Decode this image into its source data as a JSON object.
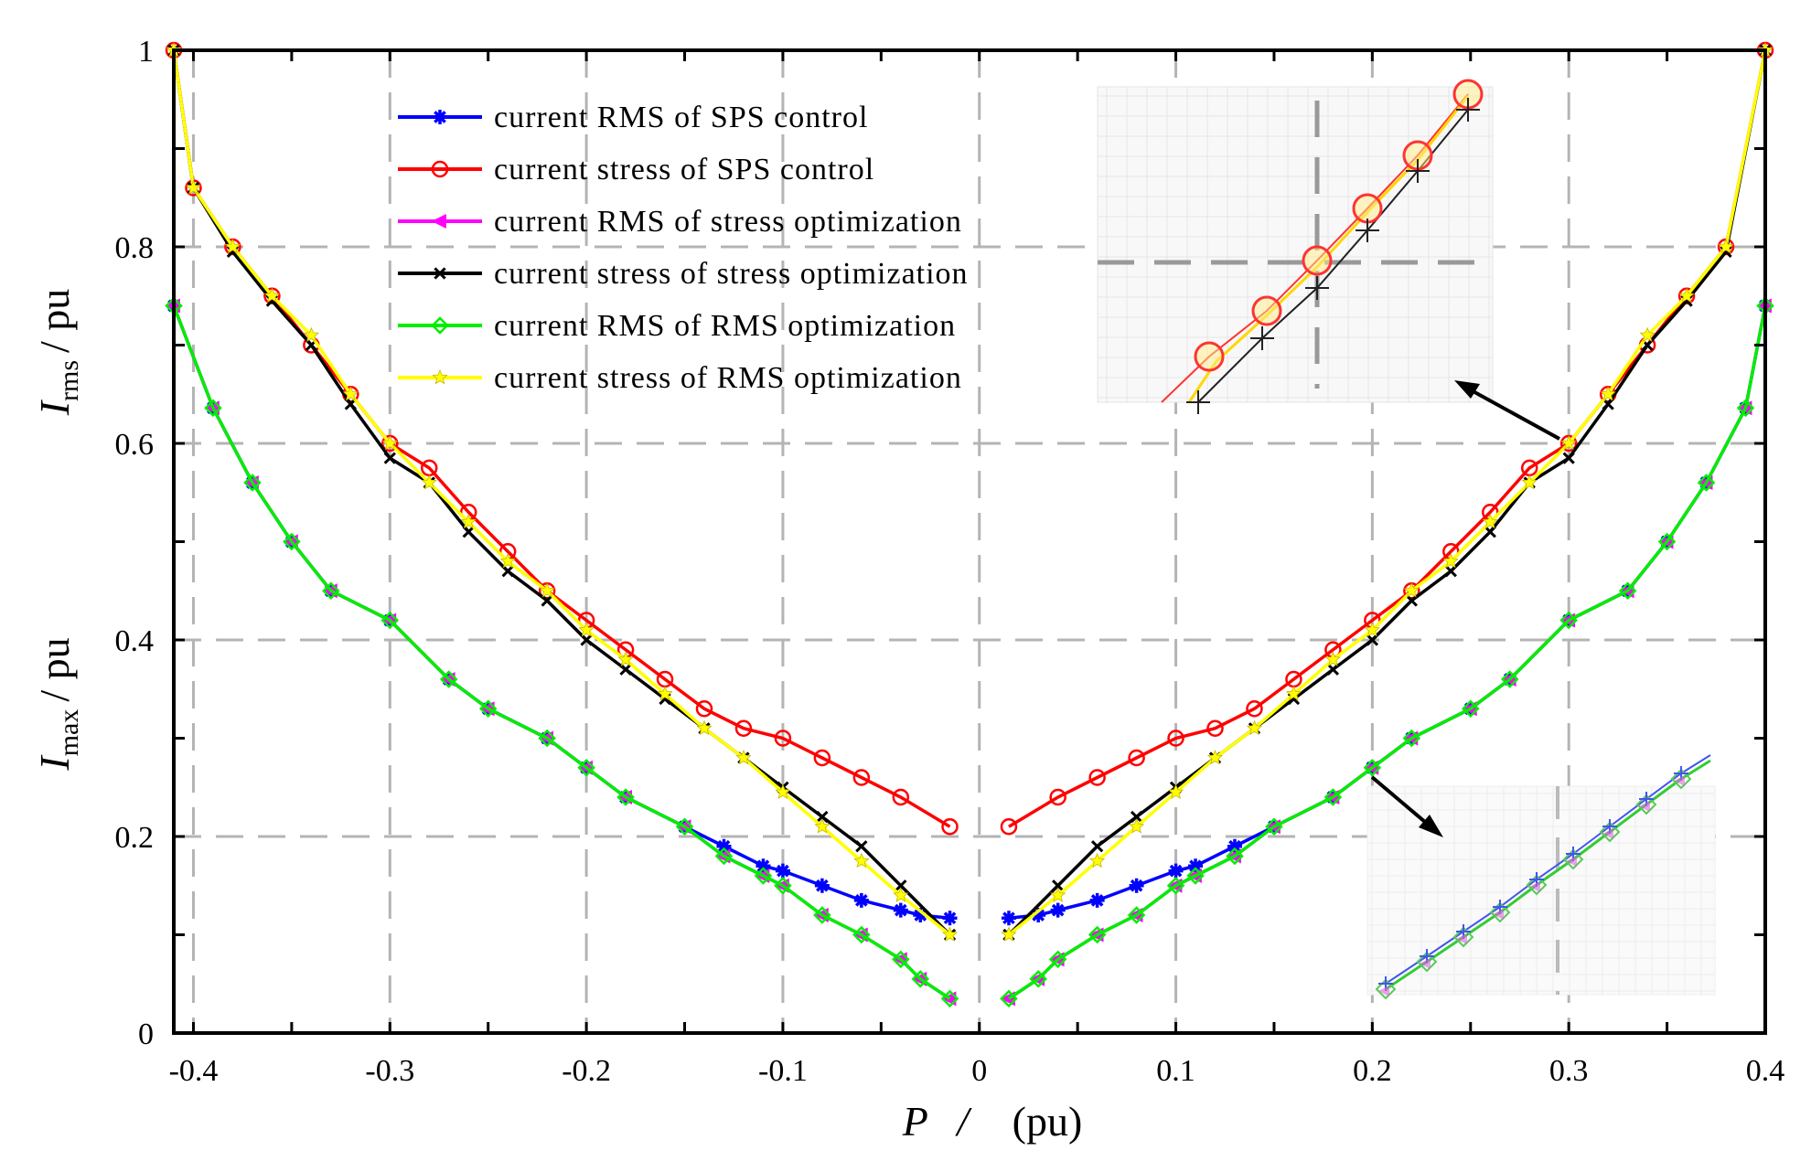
{
  "chart_data": {
    "type": "line",
    "title": "",
    "xlabel": {
      "var": "P",
      "sep": "/",
      "unit": "(pu)"
    },
    "ylabel_upper": {
      "var": "I",
      "sub": "rms",
      "unit": "/ pu"
    },
    "ylabel_lower": {
      "var": "I",
      "sub": "max",
      "unit": "/ pu"
    },
    "xlim": [
      -0.41,
      0.4
    ],
    "ylim": [
      0,
      1
    ],
    "grid": true,
    "legend_position": "top-center",
    "xticks": [
      "-0.4",
      "-0.3",
      "-0.2",
      "-0.1",
      "0",
      "0.1",
      "0.2",
      "0.3",
      "0.4"
    ],
    "yticks": [
      "0",
      "0.2",
      "0.4",
      "0.6",
      "0.8",
      "1"
    ],
    "series": [
      {
        "name": "current  RMS of SPS control",
        "color": "#0000ff",
        "marker": "asterisk",
        "x": [
          -0.41,
          -0.39,
          -0.37,
          -0.35,
          -0.33,
          -0.3,
          -0.27,
          -0.25,
          -0.22,
          -0.2,
          -0.18,
          -0.15,
          -0.13,
          -0.11,
          -0.1,
          -0.08,
          -0.06,
          -0.04,
          -0.03,
          -0.015,
          0.015,
          0.03,
          0.04,
          0.06,
          0.08,
          0.1,
          0.11,
          0.13,
          0.15,
          0.18,
          0.2,
          0.22,
          0.25,
          0.27,
          0.3,
          0.33,
          0.35,
          0.37,
          0.39,
          0.4
        ],
        "values": [
          0.74,
          0.636,
          0.56,
          0.5,
          0.45,
          0.42,
          0.36,
          0.33,
          0.3,
          0.27,
          0.24,
          0.21,
          0.19,
          0.17,
          0.165,
          0.15,
          0.135,
          0.125,
          0.12,
          0.117,
          0.117,
          0.12,
          0.125,
          0.135,
          0.15,
          0.165,
          0.17,
          0.19,
          0.21,
          0.24,
          0.27,
          0.3,
          0.33,
          0.36,
          0.42,
          0.45,
          0.5,
          0.56,
          0.636,
          0.74
        ]
      },
      {
        "name": "current stress of SPS control",
        "color": "#ff0000",
        "marker": "circle",
        "x": [
          -0.41,
          -0.4,
          -0.38,
          -0.36,
          -0.34,
          -0.32,
          -0.3,
          -0.28,
          -0.26,
          -0.24,
          -0.22,
          -0.2,
          -0.18,
          -0.16,
          -0.14,
          -0.12,
          -0.1,
          -0.08,
          -0.06,
          -0.04,
          -0.015,
          0.015,
          0.04,
          0.06,
          0.08,
          0.1,
          0.12,
          0.14,
          0.16,
          0.18,
          0.2,
          0.22,
          0.24,
          0.26,
          0.28,
          0.3,
          0.32,
          0.34,
          0.36,
          0.38,
          0.4
        ],
        "values": [
          1.0,
          0.86,
          0.8,
          0.75,
          0.7,
          0.65,
          0.6,
          0.575,
          0.53,
          0.49,
          0.45,
          0.42,
          0.39,
          0.36,
          0.33,
          0.31,
          0.3,
          0.28,
          0.26,
          0.24,
          0.21,
          0.21,
          0.24,
          0.26,
          0.28,
          0.3,
          0.31,
          0.33,
          0.36,
          0.39,
          0.42,
          0.45,
          0.49,
          0.53,
          0.575,
          0.6,
          0.65,
          0.7,
          0.75,
          0.8,
          1.0
        ]
      },
      {
        "name": "current  RMS of stress optimization",
        "color": "#ff00ff",
        "marker": "triangle-left",
        "x": [
          -0.41,
          -0.39,
          -0.37,
          -0.35,
          -0.33,
          -0.3,
          -0.27,
          -0.25,
          -0.22,
          -0.2,
          -0.18,
          -0.15,
          -0.13,
          -0.11,
          -0.1,
          -0.08,
          -0.06,
          -0.04,
          -0.03,
          -0.015,
          0.015,
          0.03,
          0.04,
          0.06,
          0.08,
          0.1,
          0.11,
          0.13,
          0.15,
          0.18,
          0.2,
          0.22,
          0.25,
          0.27,
          0.3,
          0.33,
          0.35,
          0.37,
          0.39,
          0.4
        ],
        "values": [
          0.74,
          0.636,
          0.56,
          0.5,
          0.45,
          0.42,
          0.36,
          0.33,
          0.3,
          0.27,
          0.24,
          0.21,
          0.18,
          0.16,
          0.15,
          0.12,
          0.1,
          0.075,
          0.055,
          0.035,
          0.035,
          0.055,
          0.075,
          0.1,
          0.12,
          0.15,
          0.16,
          0.18,
          0.21,
          0.24,
          0.27,
          0.3,
          0.33,
          0.36,
          0.42,
          0.45,
          0.5,
          0.56,
          0.636,
          0.74
        ]
      },
      {
        "name": "current  stress of stress  optimization",
        "color": "#000000",
        "marker": "x",
        "x": [
          -0.41,
          -0.4,
          -0.38,
          -0.36,
          -0.34,
          -0.32,
          -0.3,
          -0.28,
          -0.26,
          -0.24,
          -0.22,
          -0.2,
          -0.18,
          -0.16,
          -0.14,
          -0.12,
          -0.1,
          -0.08,
          -0.06,
          -0.04,
          -0.015,
          0.015,
          0.04,
          0.06,
          0.08,
          0.1,
          0.12,
          0.14,
          0.16,
          0.18,
          0.2,
          0.22,
          0.24,
          0.26,
          0.28,
          0.3,
          0.32,
          0.34,
          0.36,
          0.38,
          0.4
        ],
        "values": [
          1.0,
          0.86,
          0.795,
          0.745,
          0.7,
          0.64,
          0.585,
          0.56,
          0.51,
          0.47,
          0.44,
          0.4,
          0.37,
          0.34,
          0.31,
          0.28,
          0.25,
          0.22,
          0.19,
          0.15,
          0.1,
          0.1,
          0.15,
          0.19,
          0.22,
          0.25,
          0.28,
          0.31,
          0.34,
          0.37,
          0.4,
          0.44,
          0.47,
          0.51,
          0.56,
          0.585,
          0.64,
          0.7,
          0.745,
          0.795,
          1.0
        ]
      },
      {
        "name": "current  RMS of RMS  optimization",
        "color": "#00ee00",
        "marker": "diamond",
        "x": [
          -0.41,
          -0.39,
          -0.37,
          -0.35,
          -0.33,
          -0.3,
          -0.27,
          -0.25,
          -0.22,
          -0.2,
          -0.18,
          -0.15,
          -0.13,
          -0.11,
          -0.1,
          -0.08,
          -0.06,
          -0.04,
          -0.03,
          -0.015,
          0.015,
          0.03,
          0.04,
          0.06,
          0.08,
          0.1,
          0.11,
          0.13,
          0.15,
          0.18,
          0.2,
          0.22,
          0.25,
          0.27,
          0.3,
          0.33,
          0.35,
          0.37,
          0.39,
          0.4
        ],
        "values": [
          0.74,
          0.636,
          0.56,
          0.5,
          0.45,
          0.42,
          0.36,
          0.33,
          0.3,
          0.27,
          0.24,
          0.21,
          0.18,
          0.16,
          0.15,
          0.12,
          0.1,
          0.075,
          0.055,
          0.035,
          0.035,
          0.055,
          0.075,
          0.1,
          0.12,
          0.15,
          0.16,
          0.18,
          0.21,
          0.24,
          0.27,
          0.3,
          0.33,
          0.36,
          0.42,
          0.45,
          0.5,
          0.56,
          0.636,
          0.74
        ]
      },
      {
        "name": "current stress of RMS  optimization",
        "color": "#ffff00",
        "marker": "star",
        "x": [
          -0.41,
          -0.4,
          -0.38,
          -0.36,
          -0.34,
          -0.32,
          -0.3,
          -0.28,
          -0.26,
          -0.24,
          -0.22,
          -0.2,
          -0.18,
          -0.16,
          -0.14,
          -0.12,
          -0.1,
          -0.08,
          -0.06,
          -0.04,
          -0.015,
          0.015,
          0.04,
          0.06,
          0.08,
          0.1,
          0.12,
          0.14,
          0.16,
          0.18,
          0.2,
          0.22,
          0.24,
          0.26,
          0.28,
          0.3,
          0.32,
          0.34,
          0.36,
          0.38,
          0.4
        ],
        "values": [
          1.0,
          0.86,
          0.8,
          0.75,
          0.71,
          0.65,
          0.6,
          0.56,
          0.52,
          0.48,
          0.45,
          0.41,
          0.38,
          0.345,
          0.31,
          0.28,
          0.245,
          0.21,
          0.175,
          0.14,
          0.1,
          0.1,
          0.14,
          0.175,
          0.21,
          0.245,
          0.28,
          0.31,
          0.345,
          0.38,
          0.41,
          0.45,
          0.48,
          0.52,
          0.56,
          0.6,
          0.65,
          0.71,
          0.75,
          0.8,
          1.0
        ]
      }
    ]
  }
}
